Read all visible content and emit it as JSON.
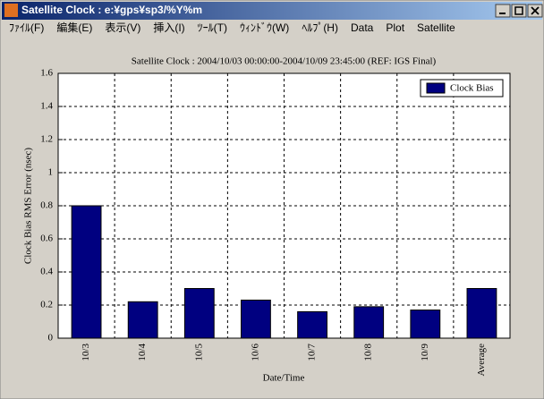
{
  "window": {
    "title": "Satellite Clock : e:¥gps¥sp3/%Y%m",
    "menu": [
      "ﾌｧｲﾙ(F)",
      "編集(E)",
      "表示(V)",
      "挿入(I)",
      "ﾂｰﾙ(T)",
      "ｳｨﾝﾄﾞｳ(W)",
      "ﾍﾙﾌﾟ(H)",
      "Data",
      "Plot",
      "Satellite"
    ]
  },
  "chart_data": {
    "type": "bar",
    "title": "Satellite Clock : 2004/10/03 00:00:00-2004/10/09 23:45:00 (REF: IGS Final)",
    "x_label": "Date/Time",
    "y_label": "Clock Bias RMS Error (nsec)",
    "categories": [
      "10/3",
      "10/4",
      "10/5",
      "10/6",
      "10/7",
      "10/8",
      "10/9",
      "Average"
    ],
    "series": [
      {
        "name": "Clock Bias",
        "color": "#000080",
        "values": [
          0.8,
          0.22,
          0.3,
          0.23,
          0.16,
          0.19,
          0.17,
          0.3
        ]
      }
    ],
    "ylim": [
      0,
      1.6
    ],
    "yticks": [
      0,
      0.2,
      0.4,
      0.6,
      0.8,
      1,
      1.2,
      1.4,
      1.6
    ],
    "grid": true,
    "legend": "upper-right"
  }
}
